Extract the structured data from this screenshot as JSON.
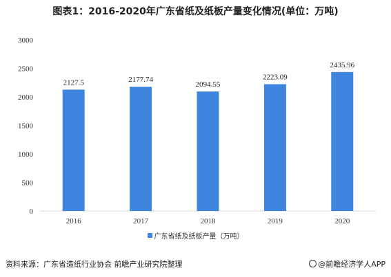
{
  "colors": {
    "bar": "#3E85DF",
    "axis": "#D9D9D9"
  },
  "footer": {
    "source": "资料来源：广东省造纸行业协会 前瞻产业研究院整理",
    "brand": "@前瞻经济学人APP",
    "brand_icon": "logo-icon"
  },
  "chart_data": {
    "type": "bar",
    "title": "图表1：2016-2020年广东省纸及纸板产量变化情况(单位：万吨)",
    "categories": [
      "2016",
      "2017",
      "2018",
      "2019",
      "2020"
    ],
    "series": [
      {
        "name": "广东省纸及纸板产量（万吨）",
        "values": [
          2127.5,
          2177.74,
          2094.55,
          2223.09,
          2435.96
        ]
      }
    ],
    "data_labels": [
      "2127.5",
      "2177.74",
      "2094.55",
      "2223.09",
      "2435.96"
    ],
    "yticks": [
      "0",
      "500",
      "1000",
      "1500",
      "2000",
      "2500",
      "3000"
    ],
    "ylim": [
      0,
      3000
    ],
    "xlabel": "",
    "ylabel": "",
    "grid": false,
    "legend_position": "bottom"
  }
}
